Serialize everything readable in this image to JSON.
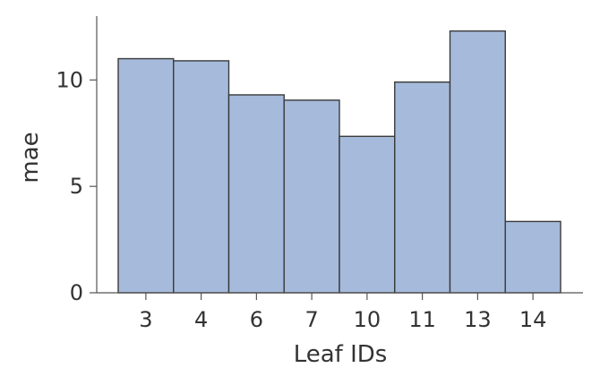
{
  "chart_data": {
    "type": "bar",
    "title": "",
    "xlabel": "Leaf IDs",
    "ylabel": "mae",
    "categories": [
      "3",
      "4",
      "6",
      "7",
      "10",
      "11",
      "13",
      "14"
    ],
    "values": [
      11.0,
      10.9,
      9.3,
      9.05,
      7.35,
      9.9,
      12.3,
      3.35
    ],
    "yticks": [
      0,
      5,
      10
    ],
    "ylim": [
      0,
      13
    ],
    "grid": false,
    "bar_color": "#a6bbdb",
    "bar_edge_color": "#3a3a3a",
    "axis_color": "#555555"
  }
}
